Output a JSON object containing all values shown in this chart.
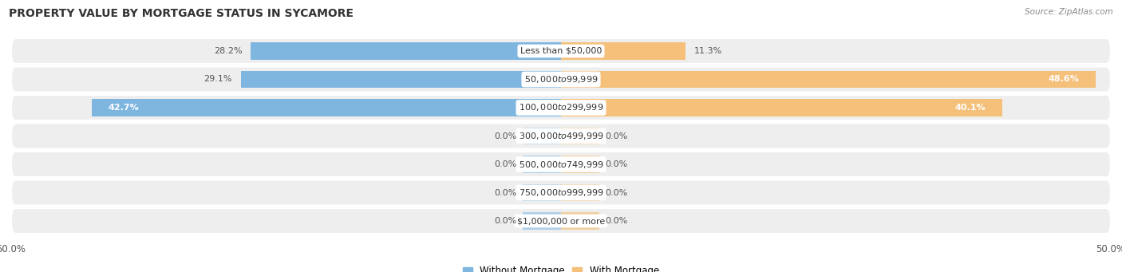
{
  "title": "PROPERTY VALUE BY MORTGAGE STATUS IN SYCAMORE",
  "source": "Source: ZipAtlas.com",
  "categories": [
    "Less than $50,000",
    "$50,000 to $99,999",
    "$100,000 to $299,999",
    "$300,000 to $499,999",
    "$500,000 to $749,999",
    "$750,000 to $999,999",
    "$1,000,000 or more"
  ],
  "without_mortgage": [
    28.2,
    29.1,
    42.7,
    0.0,
    0.0,
    0.0,
    0.0
  ],
  "with_mortgage": [
    11.3,
    48.6,
    40.1,
    0.0,
    0.0,
    0.0,
    0.0
  ],
  "color_without": "#7EB6E0",
  "color_with": "#F5C07A",
  "color_without_zero": "#AECFE8",
  "color_with_zero": "#F0D0A0",
  "axis_limit": 50.0,
  "bg_row_color": "#EEEEEE",
  "label_fontsize": 8.0,
  "title_fontsize": 10.0,
  "legend_fontsize": 8.5,
  "axis_label_fontsize": 8.5,
  "zero_stub": 3.5
}
